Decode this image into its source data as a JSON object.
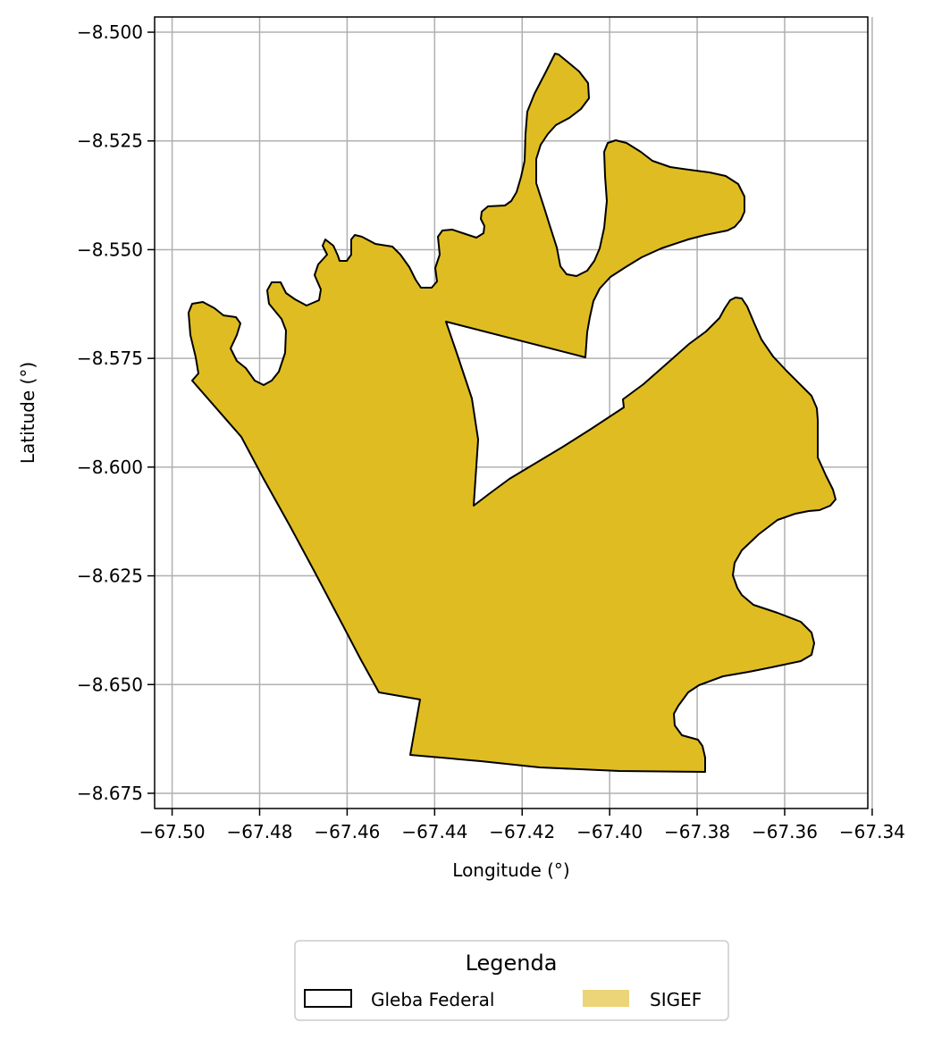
{
  "map": {
    "xlabel": "Longitude (°)",
    "ylabel": "Latitude (°)",
    "x_ticks": [
      "−67.50",
      "−67.48",
      "−67.46",
      "−67.44",
      "−67.42",
      "−67.40",
      "−67.38",
      "−67.36",
      "−67.34"
    ],
    "y_ticks": [
      "−8.500",
      "−8.525",
      "−8.550",
      "−8.575",
      "−8.600",
      "−8.625",
      "−8.650",
      "−8.675"
    ],
    "x_range": [
      -67.504,
      -67.341
    ],
    "y_range": [
      -8.6785,
      -8.4965
    ],
    "grid": true,
    "legend_position": "bottom-center",
    "colors": {
      "sigef_fill": "#dfbd22",
      "sigef_legend_fill": "#ecd478",
      "outline": "#000000",
      "grid": "#b0b0b0"
    }
  },
  "legend": {
    "title": "Legenda",
    "items": [
      {
        "label": "Gleba Federal",
        "style": "outline"
      },
      {
        "label": "SIGEF",
        "style": "fill"
      }
    ]
  }
}
